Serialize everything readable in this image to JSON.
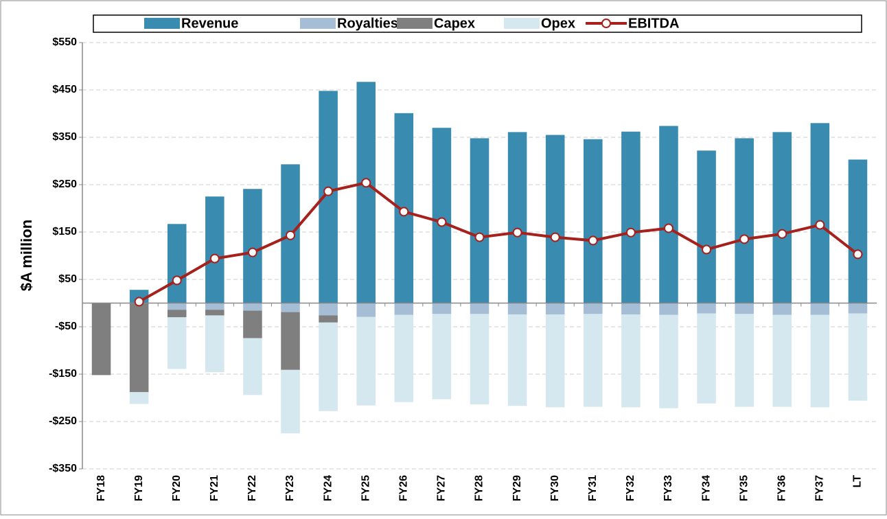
{
  "chart_data": {
    "type": "bar",
    "stacked": true,
    "y_label": "$A million",
    "categories": [
      "FY18",
      "FY19",
      "FY20",
      "FY21",
      "FY22",
      "FY23",
      "FY24",
      "FY25",
      "FY26",
      "FY27",
      "FY28",
      "FY29",
      "FY30",
      "FY31",
      "FY32",
      "FY33",
      "FY34",
      "FY35",
      "FY36",
      "FY37",
      "LT"
    ],
    "series": [
      {
        "name": "Revenue",
        "color": "#3a8bb0",
        "values": [
          0,
          28,
          167,
          225,
          241,
          293,
          448,
          467,
          401,
          370,
          348,
          361,
          355,
          346,
          362,
          374,
          322,
          348,
          361,
          380,
          303
        ]
      },
      {
        "name": "Royalties",
        "color": "#a6bdd6",
        "values": [
          0,
          0,
          -14,
          -14,
          -16,
          -19,
          -26,
          -29,
          -25,
          -23,
          -23,
          -24,
          -24,
          -23,
          -24,
          -25,
          -22,
          -23,
          -25,
          -25,
          -22
        ]
      },
      {
        "name": "Capex",
        "color": "#7f7f7f",
        "values": [
          -152,
          -188,
          -16,
          -12,
          -58,
          -122,
          -15,
          0,
          0,
          0,
          0,
          0,
          0,
          0,
          0,
          0,
          0,
          0,
          0,
          0,
          0
        ]
      },
      {
        "name": "Opex",
        "color": "#d5e8ef",
        "values": [
          0,
          -25,
          -109,
          -120,
          -120,
          -134,
          -187,
          -187,
          -184,
          -180,
          -191,
          -193,
          -196,
          -196,
          -196,
          -197,
          -190,
          -196,
          -194,
          -195,
          -184
        ]
      },
      {
        "name": "EBITDA",
        "color": "#a6201c",
        "type": "line",
        "values": [
          null,
          3,
          48,
          94,
          107,
          143,
          236,
          254,
          193,
          171,
          139,
          149,
          139,
          132,
          149,
          158,
          113,
          135,
          146,
          165,
          103
        ]
      }
    ],
    "ylim": [
      -350,
      550
    ],
    "yticks": [
      {
        "value": -350,
        "label": "-$350"
      },
      {
        "value": -250,
        "label": "-$250"
      },
      {
        "value": -150,
        "label": "-$150"
      },
      {
        "value": -50,
        "label": "-$50"
      },
      {
        "value": 50,
        "label": "$50"
      },
      {
        "value": 150,
        "label": "$150"
      },
      {
        "value": 250,
        "label": "$250"
      },
      {
        "value": 350,
        "label": "$350"
      },
      {
        "value": 450,
        "label": "$450"
      },
      {
        "value": 550,
        "label": "$550"
      }
    ],
    "grid": true,
    "legend": "top"
  }
}
